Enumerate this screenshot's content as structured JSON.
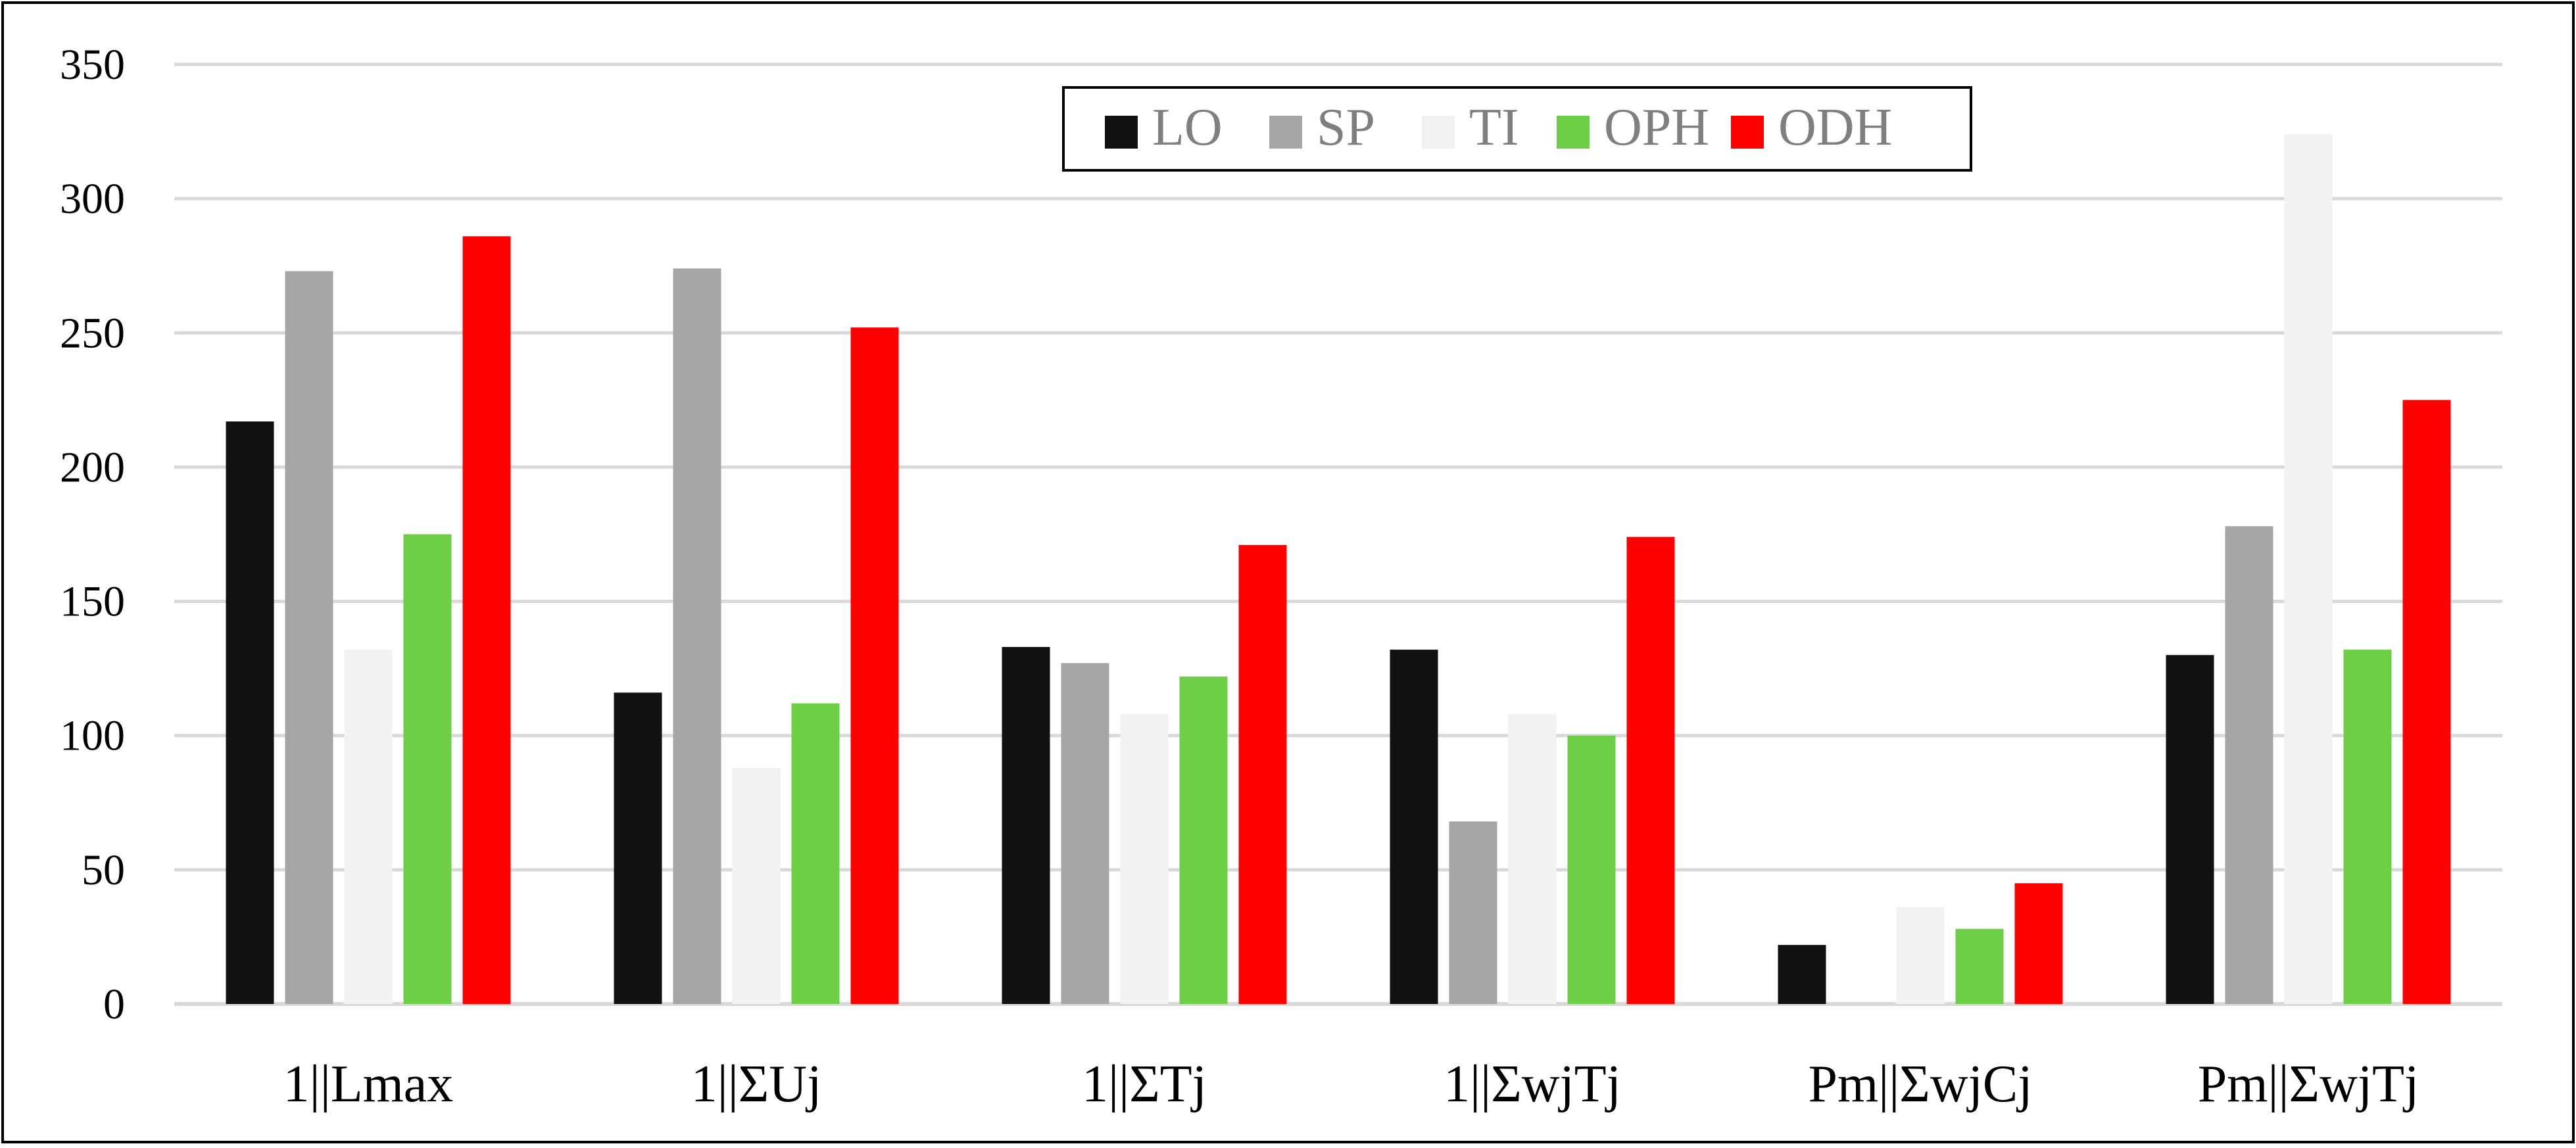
{
  "chart_data": {
    "type": "bar",
    "title": "",
    "xlabel": "",
    "ylabel": "",
    "ylim": [
      0,
      350
    ],
    "yticks": [
      0,
      50,
      100,
      150,
      200,
      250,
      300,
      350
    ],
    "grid": true,
    "legend_position": "top-center",
    "categories": [
      "1||Lmax",
      "1||ΣUj",
      "1||ΣTj",
      "1||ΣwjTj",
      "Pm||ΣwjCj",
      "Pm||ΣwjTj"
    ],
    "series": [
      {
        "name": "LO",
        "color": "#111111",
        "values": [
          217,
          116,
          133,
          132,
          22,
          130
        ]
      },
      {
        "name": "SP",
        "color": "#a6a6a6",
        "values": [
          273,
          274,
          127,
          68,
          0,
          178
        ]
      },
      {
        "name": "TI",
        "color": "#f2f2f2",
        "values": [
          132,
          88,
          108,
          108,
          36,
          324
        ]
      },
      {
        "name": "OPH",
        "color": "#6ccf45",
        "values": [
          175,
          112,
          122,
          100,
          28,
          132
        ]
      },
      {
        "name": "ODH",
        "color": "#ff0000",
        "values": [
          286,
          252,
          171,
          174,
          45,
          225
        ]
      }
    ]
  }
}
